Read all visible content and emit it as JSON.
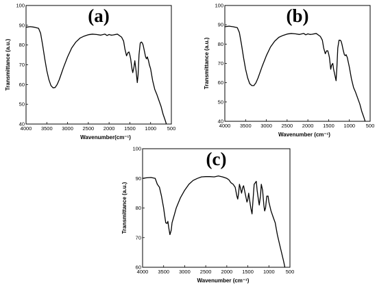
{
  "chart_data": [
    {
      "type": "line",
      "panel_label": "(a)",
      "xlabel": "Wavenumber(cm⁻¹)",
      "ylabel": "Transmittance (a.u.)",
      "xlim": [
        4000,
        500
      ],
      "ylim": [
        40,
        100
      ],
      "xticks": [
        "4000",
        "3500",
        "3000",
        "2500",
        "2000",
        "1500",
        "1000",
        "500"
      ],
      "yticks": [
        "40",
        "50",
        "60",
        "70",
        "80",
        "90",
        "100"
      ],
      "series": [
        {
          "x": [
            4000,
            3900,
            3800,
            3700,
            3650,
            3600,
            3550,
            3500,
            3450,
            3400,
            3350,
            3300,
            3250,
            3200,
            3150,
            3100,
            3000,
            2900,
            2800,
            2700,
            2600,
            2500,
            2400,
            2300,
            2200,
            2100,
            2050,
            2000,
            1950,
            1900,
            1800,
            1700,
            1650,
            1620,
            1580,
            1550,
            1520,
            1500,
            1480,
            1450,
            1430,
            1400,
            1380,
            1350,
            1320,
            1300,
            1280,
            1250,
            1220,
            1200,
            1180,
            1150,
            1120,
            1100,
            1080,
            1050,
            1030,
            1000,
            950,
            900,
            850,
            800,
            750,
            700,
            650,
            620
          ],
          "y": [
            89,
            89.3,
            89,
            88.5,
            86,
            80,
            73,
            67,
            62.5,
            59.5,
            58.3,
            58.5,
            60,
            62.5,
            65.5,
            68.5,
            74,
            78.5,
            81.5,
            83.5,
            84.5,
            85.2,
            85.5,
            85.3,
            85,
            85.5,
            84.8,
            85.3,
            85,
            85.1,
            85.5,
            84,
            82,
            78,
            74.5,
            76,
            76.5,
            75,
            73,
            68,
            66,
            69,
            72,
            67,
            61,
            65,
            75,
            81,
            81.5,
            81,
            80,
            77,
            74,
            73,
            74,
            72,
            70,
            68,
            62,
            57.5,
            55,
            52,
            49,
            45,
            42,
            40
          ]
        }
      ]
    },
    {
      "type": "line",
      "panel_label": "(b)",
      "xlabel": "Wavenumber (cm⁻¹)",
      "ylabel": "Transmittance (a.u.)",
      "xlim": [
        4000,
        500
      ],
      "ylim": [
        40,
        100
      ],
      "xticks": [
        "4000",
        "3500",
        "3000",
        "2500",
        "2000",
        "1500",
        "1000",
        "500"
      ],
      "yticks": [
        "40",
        "50",
        "60",
        "70",
        "80",
        "90",
        "100"
      ],
      "series": [
        {
          "x": [
            4000,
            3900,
            3800,
            3700,
            3650,
            3600,
            3550,
            3500,
            3450,
            3400,
            3350,
            3300,
            3250,
            3200,
            3150,
            3100,
            3000,
            2900,
            2800,
            2700,
            2600,
            2500,
            2400,
            2300,
            2200,
            2100,
            2050,
            2000,
            1950,
            1900,
            1800,
            1700,
            1650,
            1620,
            1580,
            1550,
            1520,
            1500,
            1480,
            1450,
            1430,
            1400,
            1380,
            1350,
            1320,
            1300,
            1280,
            1250,
            1220,
            1200,
            1180,
            1150,
            1120,
            1100,
            1080,
            1050,
            1030,
            1000,
            950,
            900,
            850,
            800,
            750,
            700,
            650,
            620
          ],
          "y": [
            89,
            89.3,
            89,
            88.5,
            86,
            80,
            73,
            67,
            62.5,
            59.5,
            58.5,
            58.5,
            60,
            62.5,
            65.5,
            68.5,
            74,
            78.5,
            81.5,
            83.5,
            84.5,
            85.2,
            85.5,
            85.3,
            85,
            85.5,
            84.8,
            85.3,
            85,
            85.1,
            85.5,
            84,
            82,
            78,
            75,
            76.5,
            76.5,
            75,
            73,
            67,
            69,
            70,
            67,
            64,
            61,
            68,
            78,
            82,
            82,
            81.5,
            80,
            77,
            74.5,
            74,
            74.5,
            73,
            71,
            68,
            62,
            57.5,
            55,
            52,
            49,
            45,
            42,
            40
          ]
        }
      ]
    },
    {
      "type": "line",
      "panel_label": "(c)",
      "xlabel": "Wavenumber (cm⁻¹)",
      "ylabel": "Transmittance (a.u.)",
      "xlim": [
        4000,
        500
      ],
      "ylim": [
        60,
        100
      ],
      "xticks": [
        "4000",
        "3500",
        "3000",
        "2500",
        "2000",
        "1500",
        "1000",
        "500"
      ],
      "yticks": [
        "60",
        "70",
        "80",
        "90",
        "100"
      ],
      "series": [
        {
          "x": [
            4000,
            3900,
            3800,
            3700,
            3650,
            3600,
            3550,
            3500,
            3480,
            3450,
            3420,
            3400,
            3380,
            3350,
            3320,
            3300,
            3250,
            3200,
            3100,
            3000,
            2900,
            2800,
            2700,
            2600,
            2500,
            2400,
            2300,
            2200,
            2100,
            2000,
            1950,
            1900,
            1850,
            1800,
            1760,
            1740,
            1720,
            1700,
            1680,
            1650,
            1620,
            1600,
            1580,
            1550,
            1520,
            1500,
            1480,
            1450,
            1430,
            1400,
            1380,
            1350,
            1300,
            1280,
            1250,
            1230,
            1200,
            1180,
            1150,
            1120,
            1100,
            1080,
            1050,
            1020,
            1000,
            950,
            900,
            850,
            800,
            750,
            700,
            650,
            620
          ],
          "y": [
            90,
            90.2,
            90.3,
            90,
            88,
            87,
            84,
            80,
            78,
            75,
            74.8,
            75.5,
            73.5,
            71,
            72.5,
            75,
            77.5,
            80,
            83.5,
            86,
            88,
            89.3,
            90,
            90.5,
            90.6,
            90.6,
            90.5,
            90.8,
            90.5,
            90,
            89.5,
            88.5,
            88,
            87,
            84,
            83,
            85,
            88,
            87,
            85,
            87,
            87.5,
            86,
            84,
            82,
            83,
            85,
            82,
            80,
            78,
            82,
            88,
            89,
            86,
            83,
            81,
            84,
            88,
            86,
            81,
            79,
            80,
            84,
            84,
            82,
            79,
            77,
            75,
            71,
            68,
            65,
            62,
            60
          ]
        }
      ]
    }
  ]
}
